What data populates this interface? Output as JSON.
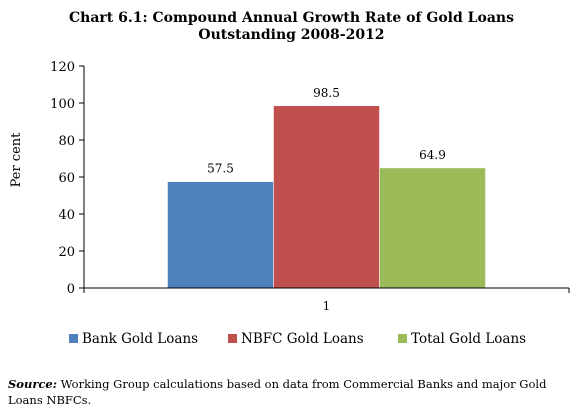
{
  "chart_data": {
    "type": "bar",
    "title_line1": "Chart  6.1: Compound Annual Growth Rate of Gold Loans",
    "title_line2": "Outstanding 2008-2012",
    "ylabel": "Per cent",
    "ylim": [
      0,
      120
    ],
    "yticks": [
      0,
      20,
      40,
      60,
      80,
      100,
      120
    ],
    "categories": [
      "1"
    ],
    "series": [
      {
        "name": "Bank Gold Loans",
        "values": [
          57.5
        ],
        "color": "#4F81BD",
        "label": "57.5"
      },
      {
        "name": "NBFC Gold Loans",
        "values": [
          98.5
        ],
        "color": "#C0504D",
        "label": "98.5"
      },
      {
        "name": "Total Gold Loans",
        "values": [
          64.9
        ],
        "color": "#9BBB59",
        "label": "64.9"
      }
    ],
    "legend_position": "bottom",
    "grid": false
  },
  "source": {
    "label": "Source:",
    "text": " Working Group calculations based on data from Commercial Banks and major Gold Loans NBFCs."
  }
}
